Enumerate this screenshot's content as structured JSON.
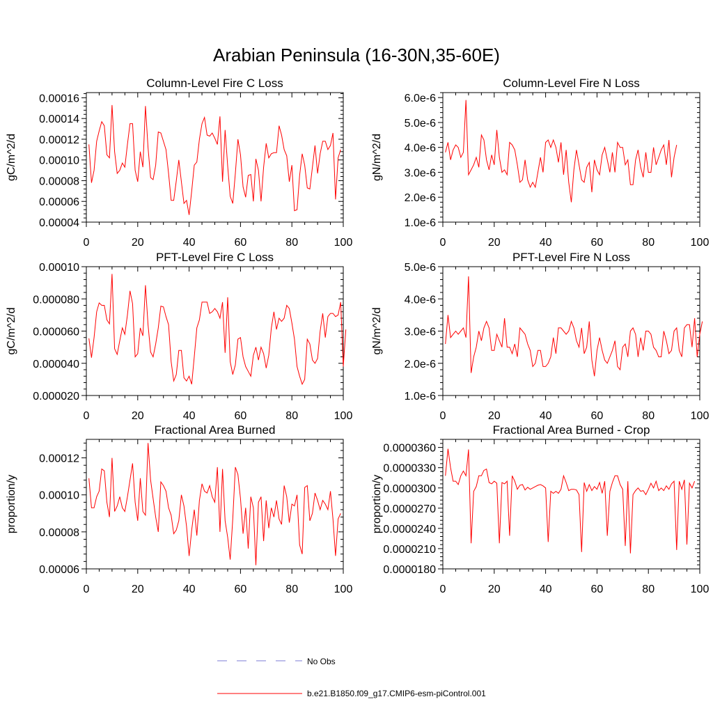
{
  "main_title": "Arabian Peninsula (16-30N,35-60E)",
  "legend": {
    "items": [
      {
        "label": "No Obs",
        "color": "#7b7bd6",
        "style": "dashed"
      },
      {
        "label": "b.e21.B1850.f09_g17.CMIP6-esm-piControl.001",
        "color": "#ff0000",
        "style": "solid"
      }
    ]
  },
  "chart_data": [
    {
      "type": "line",
      "title": "Column-Level Fire C Loss",
      "ylabel": "gC/m^2/d",
      "xlim": [
        0,
        100
      ],
      "ylim": [
        4e-05,
        0.000165
      ],
      "xticks": [
        0,
        20,
        40,
        60,
        80,
        100
      ],
      "xtick_labels": [
        "0",
        "20",
        "40",
        "60",
        "80",
        "100"
      ],
      "yticks": [
        4e-05,
        6e-05,
        8e-05,
        0.0001,
        0.00012,
        0.00014,
        0.00016
      ],
      "ytick_labels": [
        "0.00004",
        "0.00006",
        "0.00008",
        "0.00010",
        "0.00012",
        "0.00014",
        "0.00016"
      ],
      "color": "#ff0000",
      "values": [
        0.000115,
        7.8e-05,
        9e-05,
        0.000118,
        0.000128,
        0.000137,
        0.000133,
        0.000105,
        0.000102,
        0.000153,
        0.000108,
        8.7e-05,
        9e-05,
        9.7e-05,
        9.3e-05,
        0.000115,
        0.000135,
        0.000135,
        9e-05,
        7.9e-05,
        0.000108,
        9.3e-05,
        0.000152,
        0.000112,
        8.3e-05,
        8.1e-05,
        9.5e-05,
        0.000127,
        0.000126,
        0.000118,
        0.00011,
        8.7e-05,
        6.1e-05,
        6.1e-05,
        8e-05,
        0.0001,
        7.9e-05,
        5.8e-05,
        6.1e-05,
        4.7e-05,
        7e-05,
        9.5e-05,
        9.8e-05,
        0.00012,
        0.000135,
        0.000141,
        0.000124,
        0.000123,
        0.000126,
        0.000121,
        0.000115,
        0.000142,
        7.9e-05,
        0.000129,
        9.4e-05,
        6.5e-05,
        5.8e-05,
        8.7e-05,
        0.00012,
        0.000105,
        7.4e-05,
        6.4e-05,
        8.5e-05,
        8.6e-05,
        6e-05,
        0.000101,
        9e-05,
        6e-05,
        9.3e-05,
        0.000116,
        0.000102,
        0.000106,
        0.000107,
        0.000107,
        0.000133,
        0.000124,
        0.00011,
        0.000104,
        7.9e-05,
        9.5e-05,
        5.1e-05,
        5.2e-05,
        8.5e-05,
        0.000106,
        9.5e-05,
        7.3e-05,
        7.2e-05,
        9.3e-05,
        0.000114,
        8.7e-05,
        0.000106,
        0.000118,
        0.000118,
        0.00011,
        0.000114,
        0.000126,
        6.2e-05,
        0.000102,
        0.00011
      ]
    },
    {
      "type": "line",
      "title": "Column-Level Fire N Loss",
      "ylabel": "gN/m^2/d",
      "xlim": [
        0,
        100
      ],
      "ylim": [
        1e-06,
        6.2e-06
      ],
      "xticks": [
        0,
        20,
        40,
        60,
        80,
        100
      ],
      "xtick_labels": [
        "0",
        "20",
        "40",
        "60",
        "80",
        "100"
      ],
      "yticks": [
        1e-06,
        2e-06,
        3e-06,
        4e-06,
        5e-06,
        6e-06
      ],
      "ytick_labels": [
        "1.0e-6",
        "2.0e-6",
        "3.0e-6",
        "4.0e-6",
        "5.0e-6",
        "6.0e-6"
      ],
      "color": "#ff0000",
      "values": [
        3.8e-06,
        4.2e-06,
        3.5e-06,
        3.9e-06,
        4.1e-06,
        4e-06,
        3.6e-06,
        3.8e-06,
        5.9e-06,
        2.9e-06,
        3.1e-06,
        3.3e-06,
        3.6e-06,
        3.2e-06,
        4.5e-06,
        4.3e-06,
        3.5e-06,
        3.1e-06,
        3.7e-06,
        3.3e-06,
        4.7e-06,
        3.6e-06,
        3e-06,
        3.1e-06,
        2.9e-06,
        4.2e-06,
        4.1e-06,
        3.9e-06,
        3.3e-06,
        2.6e-06,
        2.7e-06,
        3.5e-06,
        2.7e-06,
        2.4e-06,
        2.6e-06,
        2.4e-06,
        3e-06,
        3.6e-06,
        3e-06,
        4.2e-06,
        4.3e-06,
        4e-06,
        4.3e-06,
        4e-06,
        3.4e-06,
        4.2e-06,
        2.9e-06,
        3.9e-06,
        2.6e-06,
        1.8e-06,
        3.1e-06,
        3.9e-06,
        3.3e-06,
        2.7e-06,
        2.6e-06,
        3.2e-06,
        3.4e-06,
        2.2e-06,
        3.5e-06,
        3.1e-06,
        2.9e-06,
        3.7e-06,
        4e-06,
        3.5e-06,
        3e-06,
        3.8e-06,
        3e-06,
        4.2e-06,
        4e-06,
        4e-06,
        3.3e-06,
        3.5e-06,
        2.5e-06,
        2.5e-06,
        3.5e-06,
        3.9e-06,
        3.2e-06,
        2.8e-06,
        3.8e-06,
        3e-06,
        3e-06,
        4e-06,
        3.3e-06,
        3.6e-06,
        3.9e-06,
        4.1e-06,
        3.3e-06,
        4.3e-06,
        2.8e-06,
        3.6e-06,
        4.1e-06
      ]
    },
    {
      "type": "line",
      "title": "PFT-Level Fire C Loss",
      "ylabel": "gC/m^2/d",
      "xlim": [
        0,
        100
      ],
      "ylim": [
        2e-05,
        0.0001
      ],
      "xticks": [
        0,
        20,
        40,
        60,
        80,
        100
      ],
      "xtick_labels": [
        "0",
        "20",
        "40",
        "60",
        "80",
        "100"
      ],
      "yticks": [
        2e-05,
        4e-05,
        6e-05,
        8e-05,
        0.0001
      ],
      "ytick_labels": [
        "0.000020",
        "0.000040",
        "0.000060",
        "0.000080",
        "0.00010"
      ],
      "color": "#ff0000",
      "values": [
        5.55e-05,
        4.35e-05,
        5.6e-05,
        7.2e-05,
        7.75e-05,
        7.6e-05,
        7.6e-05,
        6.7e-05,
        6.45e-05,
        9.55e-05,
        4.9e-05,
        4.55e-05,
        5.4e-05,
        6.2e-05,
        5.8e-05,
        7e-05,
        8.5e-05,
        7.7e-05,
        4.4e-05,
        4.6e-05,
        6.2e-05,
        5.7e-05,
        8.85e-05,
        6.4e-05,
        4.7e-05,
        4.4e-05,
        5.2e-05,
        6.2e-05,
        7.55e-05,
        7.5e-05,
        6.9e-05,
        6.4e-05,
        4.1e-05,
        2.9e-05,
        3.3e-05,
        4.8e-05,
        4.8e-05,
        3.1e-05,
        2.9e-05,
        3.2e-05,
        2.7e-05,
        4.4e-05,
        6.2e-05,
        6.7e-05,
        7.8e-05,
        7.8e-05,
        7.8e-05,
        7.1e-05,
        7.2e-05,
        7.4e-05,
        7.2e-05,
        6.8e-05,
        7.8e-05,
        4.65e-05,
        8.1e-05,
        4.1e-05,
        3.3e-05,
        3.9e-05,
        5.5e-05,
        5.6e-05,
        4.4e-05,
        3.8e-05,
        3.5e-05,
        3.2e-05,
        4.5e-05,
        5e-05,
        4.2e-05,
        5e-05,
        4.6e-05,
        3.7e-05,
        4.5e-05,
        6.2e-05,
        7.2e-05,
        6.1e-05,
        6.8e-05,
        6.6e-05,
        6.8e-05,
        7.6e-05,
        7.4e-05,
        6.5e-05,
        5.5e-05,
        3.8e-05,
        3.2e-05,
        2.7e-05,
        3e-05,
        5.5e-05,
        5.2e-05,
        4.2e-05,
        4e-05,
        4.3e-05,
        6e-05,
        7.1e-05,
        5.6e-05,
        6.9e-05,
        7.1e-05,
        7.1e-05,
        6.9e-05,
        7e-05,
        7.8e-05,
        3.8e-05,
        6.1e-05
      ]
    },
    {
      "type": "line",
      "title": "PFT-Level Fire N Loss",
      "ylabel": "gN/m^2/d",
      "xlim": [
        0,
        100
      ],
      "ylim": [
        1e-06,
        5e-06
      ],
      "xticks": [
        0,
        20,
        40,
        60,
        80,
        100
      ],
      "xtick_labels": [
        "0",
        "20",
        "40",
        "60",
        "80",
        "100"
      ],
      "yticks": [
        1e-06,
        2e-06,
        3e-06,
        4e-06,
        5e-06
      ],
      "ytick_labels": [
        "1.0e-6",
        "2.0e-6",
        "3.0e-6",
        "4.0e-6",
        "5.0e-6"
      ],
      "color": "#ff0000",
      "values": [
        2.6e-06,
        3.5e-06,
        2.8e-06,
        2.9e-06,
        3e-06,
        2.9e-06,
        3e-06,
        3.1e-06,
        2.8e-06,
        4.7e-06,
        1.7e-06,
        2.2e-06,
        2.5e-06,
        3e-06,
        2.7e-06,
        3.1e-06,
        3.3e-06,
        3.1e-06,
        2.4e-06,
        2.4e-06,
        2.9e-06,
        2.7e-06,
        2.5e-06,
        3.4e-06,
        2.5e-06,
        2.5e-06,
        2.3e-06,
        2.6e-06,
        2.2e-06,
        3.1e-06,
        3e-06,
        2.9e-06,
        2.6e-06,
        2.4e-06,
        1.9e-06,
        2e-06,
        2.4e-06,
        2.4e-06,
        1.9e-06,
        1.9e-06,
        2e-06,
        2.2e-06,
        2.8e-06,
        2.3e-06,
        3.1e-06,
        3.1e-06,
        3e-06,
        2.9e-06,
        3e-06,
        3.3e-06,
        3.1e-06,
        2.7e-06,
        2.5e-06,
        3.1e-06,
        2.3e-06,
        2.5e-06,
        3.3e-06,
        2.1e-06,
        1.6e-06,
        2.4e-06,
        2.8e-06,
        2.4e-06,
        2.1e-06,
        2e-06,
        2.2e-06,
        2.4e-06,
        2.7e-06,
        1.9e-06,
        1.8e-06,
        2.5e-06,
        2.6e-06,
        2.2e-06,
        3e-06,
        3.1e-06,
        2.9e-06,
        2.2e-06,
        2.8e-06,
        2.4e-06,
        3e-06,
        3e-06,
        2.9e-06,
        2.5e-06,
        2.4e-06,
        2.2e-06,
        2.2e-06,
        3e-06,
        2.7e-06,
        2.3e-06,
        2.4e-06,
        3e-06,
        3.1e-06,
        2.4e-06,
        2.2e-06,
        3.1e-06,
        3.2e-06,
        3.2e-06,
        2.5e-06,
        3.4e-06,
        2.2e-06,
        2.9e-06,
        3.3e-06
      ]
    },
    {
      "type": "line",
      "title": "Fractional Area Burned",
      "ylabel": "proportion/y",
      "xlim": [
        0,
        100
      ],
      "ylim": [
        6e-05,
        0.00013
      ],
      "xticks": [
        0,
        20,
        40,
        60,
        80,
        100
      ],
      "xtick_labels": [
        "0",
        "20",
        "40",
        "60",
        "80",
        "100"
      ],
      "yticks": [
        6e-05,
        8e-05,
        0.0001,
        0.00012
      ],
      "ytick_labels": [
        "0.00006",
        "0.00008",
        "0.00010",
        "0.00012"
      ],
      "color": "#ff0000",
      "values": [
        0.000109,
        9.3e-05,
        9.3e-05,
        9.9e-05,
        0.000102,
        0.000114,
        0.000113,
        9.6e-05,
        8.8e-05,
        0.00012,
        9.1e-05,
        9.4e-05,
        9.9e-05,
        9.3e-05,
        9.1e-05,
        9.9e-05,
        0.000108,
        0.000117,
        9.6e-05,
        8.6e-05,
        0.000109,
        9.1e-05,
        8.9e-05,
        0.000128,
        0.000108,
        9.8e-05,
        8.8e-05,
        8e-05,
        0.000107,
        0.000105,
        0.000102,
        9.3e-05,
        8.9e-05,
        7.9e-05,
        8.1e-05,
        8.6e-05,
        0.0001,
        9.4e-05,
        8.3e-05,
        6.7e-05,
        8.1e-05,
        9.2e-05,
        7.8e-05,
        9.7e-05,
        0.000106,
        0.000102,
        0.000101,
        0.000105,
        9.9e-05,
        9.6e-05,
        0.000115,
        8e-05,
        0.000114,
        8.6e-05,
        7.7e-05,
        6.5e-05,
        8.7e-05,
        0.000115,
        0.000111,
        9.8e-05,
        7.9e-05,
        9.3e-05,
        7.1e-05,
        9.9e-05,
        9.3e-05,
        6.2e-05,
        9.6e-05,
        9.9e-05,
        7.5e-05,
        9.7e-05,
        8.2e-05,
        9.3e-05,
        8.8e-05,
        9.7e-05,
        8.7e-05,
        8.4e-05,
        0.000105,
        9.9e-05,
        8.5e-05,
        9.5e-05,
        9.4e-05,
        0.0001,
        7.3e-05,
        6.8e-05,
        0.000104,
        0.000105,
        8.6e-05,
        9e-05,
        0.000101,
        9.7e-05,
        9.2e-05,
        9.7e-05,
        9.5e-05,
        9.2e-05,
        0.000102,
        8.7e-05,
        6.7e-05,
        8.7e-05,
        9e-05
      ]
    },
    {
      "type": "line",
      "title": "Fractional Area Burned - Crop",
      "ylabel": "proportion/y",
      "xlim": [
        0,
        100
      ],
      "ylim": [
        1.8e-05,
        3.72e-05
      ],
      "xticks": [
        0,
        20,
        40,
        60,
        80,
        100
      ],
      "xtick_labels": [
        "0",
        "20",
        "40",
        "60",
        "80",
        "100"
      ],
      "yticks": [
        1.8e-05,
        2.1e-05,
        2.4e-05,
        2.7e-05,
        3e-05,
        3.3e-05,
        3.6e-05
      ],
      "ytick_labels": [
        "0.0000180",
        "0.0000210",
        "0.0000240",
        "0.0000270",
        "0.0000300",
        "0.0000330",
        "0.0000360"
      ],
      "color": "#ff0000",
      "values": [
        3.18e-05,
        3.58e-05,
        3.3e-05,
        3.1e-05,
        3.1e-05,
        3.05e-05,
        3.18e-05,
        3.25e-05,
        3.18e-05,
        3.57e-05,
        2.18e-05,
        2.95e-05,
        3.02e-05,
        3.18e-05,
        3.18e-05,
        3.26e-05,
        3.28e-05,
        3.08e-05,
        3.06e-05,
        3.1e-05,
        3.07e-05,
        2.18e-05,
        3.08e-05,
        3.06e-05,
        3.1e-05,
        2.29e-05,
        3.18e-05,
        3.1e-05,
        2.98e-05,
        3.04e-05,
        3.05e-05,
        2.97e-05,
        3.01e-05,
        2.98e-05,
        3e-05,
        3.02e-05,
        3.04e-05,
        3.05e-05,
        3.03e-05,
        3e-05,
        2.2e-05,
        2.95e-05,
        2.92e-05,
        2.95e-05,
        2.92e-05,
        2.98e-05,
        3.18e-05,
        3.08e-05,
        2.96e-05,
        2.98e-05,
        2.98e-05,
        2.97e-05,
        2.9e-05,
        2.05e-05,
        3.08e-05,
        2.95e-05,
        3.05e-05,
        2.96e-05,
        3.02e-05,
        2.98e-05,
        3.08e-05,
        2.92e-05,
        3.1e-05,
        2.29e-05,
        2.95e-05,
        3.08e-05,
        3.18e-05,
        3.18e-05,
        3.05e-05,
        2.98e-05,
        2.14e-05,
        3.1e-05,
        2.03e-05,
        2.9e-05,
        2.96e-05,
        3e-05,
        2.95e-05,
        2.96e-05,
        2.9e-05,
        2.98e-05,
        3.07e-05,
        3e-05,
        3.1e-05,
        2.96e-05,
        3e-05,
        2.96e-05,
        3.03e-05,
        2.98e-05,
        3.06e-05,
        3.1e-05,
        2.08e-05,
        3.1e-05,
        2.98e-05,
        3.12e-05,
        2.16e-05,
        3.07e-05,
        3e-05,
        3.1e-05
      ]
    }
  ]
}
